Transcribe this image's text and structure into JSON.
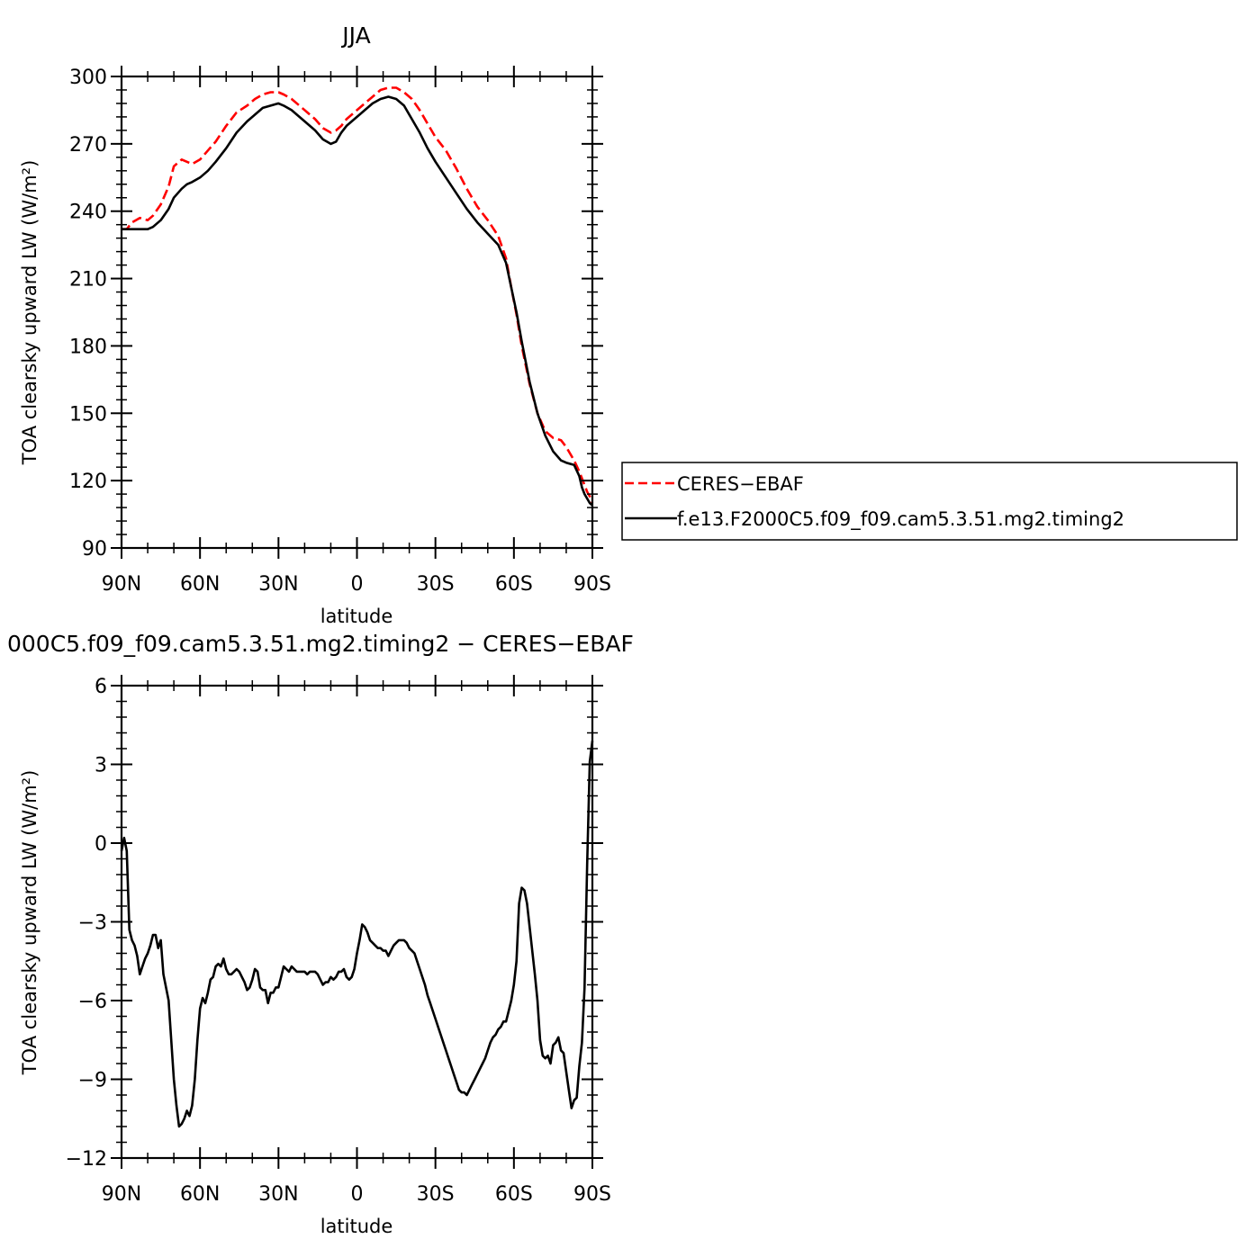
{
  "chart_data": [
    {
      "type": "line",
      "title": "JJA",
      "xlabel": "latitude",
      "ylabel": "TOA clearsky upward LW (W/m²)",
      "xlim": [
        90,
        -90
      ],
      "ylim": [
        90,
        300
      ],
      "x_tick_values": [
        90,
        60,
        30,
        0,
        -30,
        -60,
        -90
      ],
      "x_tick_labels": [
        "90N",
        "60N",
        "30N",
        "0",
        "30S",
        "60S",
        "90S"
      ],
      "y_ticks": [
        90,
        120,
        150,
        180,
        210,
        240,
        270,
        300
      ],
      "legend_position": "right",
      "series": [
        {
          "name": "CERES−EBAF",
          "color": "#ff0000",
          "dash": "dashed",
          "x": [
            90,
            88,
            86,
            83,
            80,
            78,
            75,
            72,
            70,
            67,
            65,
            63,
            60,
            57,
            54,
            50,
            46,
            42,
            39,
            36,
            33,
            30,
            28,
            25,
            22,
            19,
            16,
            13,
            10,
            8,
            6,
            4,
            2,
            0,
            -3,
            -6,
            -9,
            -12,
            -15,
            -18,
            -21,
            -24,
            -27,
            -30,
            -34,
            -38,
            -42,
            -46,
            -50,
            -54,
            -57,
            -59,
            -61,
            -63,
            -66,
            -69,
            -72,
            -75,
            -78,
            -80,
            -83,
            -85,
            -86,
            -87,
            -88,
            -89,
            -90
          ],
          "y": [
            232,
            232,
            235,
            237,
            236,
            238,
            243,
            251,
            260,
            263,
            262,
            261,
            263,
            267,
            271,
            278,
            284,
            287,
            290,
            292,
            293,
            293,
            292,
            290,
            287,
            284,
            281,
            277,
            275,
            276,
            278,
            281,
            283,
            285,
            288,
            291,
            294,
            295,
            295,
            293,
            290,
            285,
            279,
            273,
            267,
            259,
            250,
            242,
            236,
            229,
            219,
            206,
            194,
            180,
            163,
            150,
            142,
            139,
            138,
            135,
            129,
            124,
            121,
            118,
            115,
            113,
            110
          ]
        },
        {
          "name": "f.e13.F2000C5.f09_f09.cam5.3.51.mg2.timing2",
          "color": "#000000",
          "dash": "solid",
          "x": [
            90,
            88,
            86,
            83,
            80,
            78,
            75,
            72,
            70,
            67,
            65,
            63,
            60,
            57,
            54,
            50,
            46,
            42,
            39,
            36,
            33,
            30,
            28,
            25,
            22,
            19,
            16,
            13,
            10,
            8,
            6,
            4,
            2,
            0,
            -3,
            -6,
            -9,
            -12,
            -15,
            -18,
            -21,
            -24,
            -27,
            -30,
            -34,
            -38,
            -42,
            -46,
            -50,
            -54,
            -57,
            -59,
            -61,
            -63,
            -66,
            -69,
            -72,
            -75,
            -78,
            -80,
            -83,
            -85,
            -86,
            -87,
            -88,
            -89,
            -90
          ],
          "y": [
            232,
            232,
            232,
            232,
            232,
            233,
            236,
            241,
            246,
            250,
            252,
            253,
            255,
            258,
            262,
            268,
            275,
            280,
            283,
            286,
            287,
            288,
            287,
            285,
            282,
            279,
            276,
            272,
            270,
            271,
            275,
            278,
            280,
            282,
            285,
            288,
            290,
            291,
            290,
            287,
            281,
            275,
            268,
            262,
            255,
            248,
            241,
            235,
            230,
            225,
            217,
            206,
            195,
            182,
            164,
            150,
            140,
            133,
            129,
            128,
            127,
            122,
            117,
            114,
            112,
            110,
            109
          ]
        }
      ]
    },
    {
      "type": "line",
      "title": "000C5.f09_f09.cam5.3.51.mg2.timing2 − CERES−EBAF",
      "xlabel": "latitude",
      "ylabel": "TOA clearsky upward LW (W/m²)",
      "xlim": [
        90,
        -90
      ],
      "ylim": [
        -12,
        6
      ],
      "x_tick_values": [
        90,
        60,
        30,
        0,
        -30,
        -60,
        -90
      ],
      "x_tick_labels": [
        "90N",
        "60N",
        "30N",
        "0",
        "30S",
        "60S",
        "90S"
      ],
      "y_ticks": [
        -12,
        -9,
        -6,
        -3,
        0,
        3,
        6
      ],
      "series": [
        {
          "color": "#000000",
          "dash": "solid",
          "x": [
            90,
            89,
            88,
            87,
            86,
            85,
            84,
            83,
            82,
            81,
            80,
            79,
            78,
            77,
            76,
            75,
            74,
            73,
            72,
            71,
            70,
            69,
            68,
            67,
            66,
            65,
            64,
            63,
            62,
            61,
            60,
            59,
            58,
            57,
            56,
            55,
            54,
            53,
            52,
            51,
            50,
            49,
            48,
            47,
            46,
            45,
            44,
            43,
            42,
            41,
            40,
            39,
            38,
            37,
            36,
            35,
            34,
            33,
            32,
            31,
            30,
            29,
            28,
            27,
            26,
            25,
            24,
            23,
            22,
            21,
            20,
            19,
            18,
            17,
            16,
            15,
            14,
            13,
            12,
            11,
            10,
            9,
            8,
            7,
            6,
            5,
            4,
            3,
            2,
            1,
            0,
            -1,
            -2,
            -3,
            -4,
            -5,
            -6,
            -7,
            -8,
            -9,
            -10,
            -11,
            -12,
            -13,
            -14,
            -15,
            -16,
            -17,
            -18,
            -19,
            -20,
            -21,
            -22,
            -23,
            -24,
            -25,
            -26,
            -27,
            -28,
            -29,
            -30,
            -31,
            -32,
            -33,
            -34,
            -35,
            -36,
            -37,
            -38,
            -39,
            -40,
            -41,
            -42,
            -43,
            -44,
            -45,
            -46,
            -47,
            -48,
            -49,
            -50,
            -51,
            -52,
            -53,
            -54,
            -55,
            -56,
            -57,
            -58,
            -59,
            -60,
            -61,
            -62,
            -63,
            -64,
            -65,
            -66,
            -67,
            -68,
            -69,
            -70,
            -71,
            -72,
            -73,
            -74,
            -75,
            -76,
            -77,
            -78,
            -79,
            -80,
            -81,
            -82,
            -83,
            -84,
            -85,
            -86,
            -87,
            -88,
            -89,
            -90
          ],
          "y": [
            -0.3,
            0.2,
            -0.3,
            -3.3,
            -3.7,
            -3.9,
            -4.3,
            -5.0,
            -4.7,
            -4.4,
            -4.2,
            -3.9,
            -3.5,
            -3.5,
            -4.0,
            -3.7,
            -5.0,
            -5.5,
            -6.0,
            -7.5,
            -9.0,
            -10.0,
            -10.8,
            -10.7,
            -10.5,
            -10.2,
            -10.4,
            -10.0,
            -9.0,
            -7.5,
            -6.3,
            -5.9,
            -6.1,
            -5.7,
            -5.2,
            -5.1,
            -4.7,
            -4.6,
            -4.7,
            -4.4,
            -4.8,
            -5.0,
            -5.0,
            -4.9,
            -4.8,
            -4.9,
            -5.1,
            -5.3,
            -5.6,
            -5.5,
            -5.2,
            -4.8,
            -4.9,
            -5.5,
            -5.6,
            -5.6,
            -6.1,
            -5.7,
            -5.7,
            -5.5,
            -5.5,
            -5.1,
            -4.7,
            -4.8,
            -4.9,
            -4.7,
            -4.8,
            -4.9,
            -4.9,
            -4.9,
            -4.9,
            -5.0,
            -4.9,
            -4.9,
            -4.9,
            -5.0,
            -5.2,
            -5.4,
            -5.3,
            -5.3,
            -5.1,
            -5.2,
            -5.1,
            -4.9,
            -4.9,
            -4.8,
            -5.1,
            -5.2,
            -5.1,
            -4.8,
            -4.2,
            -3.7,
            -3.1,
            -3.2,
            -3.4,
            -3.7,
            -3.8,
            -3.9,
            -4.0,
            -4.0,
            -4.1,
            -4.1,
            -4.3,
            -4.1,
            -3.9,
            -3.8,
            -3.7,
            -3.7,
            -3.7,
            -3.8,
            -4.0,
            -4.1,
            -4.2,
            -4.5,
            -4.8,
            -5.1,
            -5.4,
            -5.8,
            -6.1,
            -6.4,
            -6.7,
            -7.0,
            -7.3,
            -7.6,
            -7.9,
            -8.2,
            -8.5,
            -8.8,
            -9.1,
            -9.4,
            -9.5,
            -9.5,
            -9.6,
            -9.4,
            -9.2,
            -9.0,
            -8.8,
            -8.6,
            -8.4,
            -8.2,
            -7.9,
            -7.6,
            -7.4,
            -7.3,
            -7.1,
            -7.0,
            -6.8,
            -6.8,
            -6.4,
            -6.0,
            -5.4,
            -4.5,
            -2.3,
            -1.7,
            -1.8,
            -2.3,
            -3.2,
            -4.1,
            -5.0,
            -6.0,
            -7.5,
            -8.1,
            -8.2,
            -8.1,
            -8.4,
            -7.7,
            -7.6,
            -7.4,
            -7.9,
            -8.0,
            -8.7,
            -9.4,
            -10.1,
            -9.8,
            -9.7,
            -8.5,
            -7.6,
            -5.5,
            -0.8,
            3.1,
            3.9
          ]
        }
      ]
    }
  ]
}
